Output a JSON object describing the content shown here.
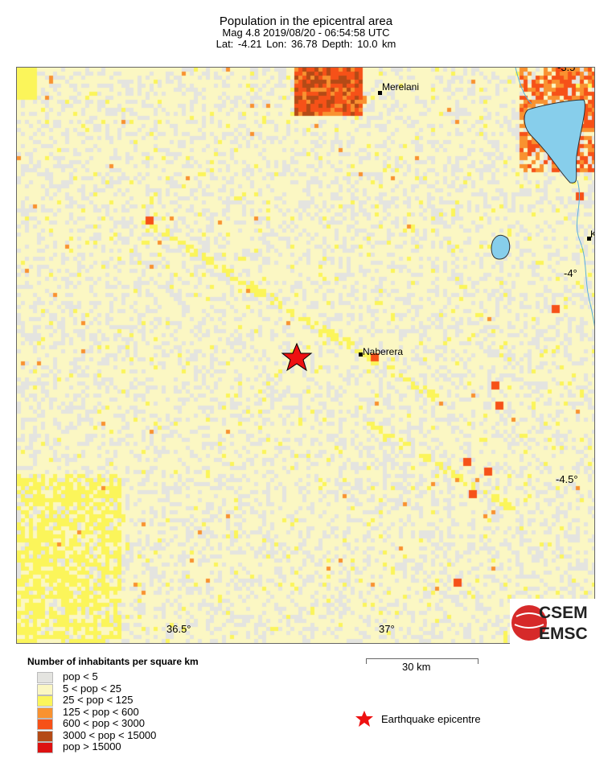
{
  "title": {
    "line1": "Population in the epicentral area",
    "line2": "Mag 4.8  2019/08/20 - 06:54:58 UTC",
    "line3": "Lat: -4.21    Lon:  36.78    Depth:  10.0 km"
  },
  "map": {
    "lat_labels": [
      "-3.5",
      "-4°",
      "-4.5°"
    ],
    "lon_labels": [
      "36.5°",
      "37°"
    ],
    "places": [
      "Merelani",
      "Naberera",
      "K"
    ],
    "epicentre": {
      "lat": -4.21,
      "lon": 36.78
    },
    "water_color": "#87ceeb",
    "scale_label": "30 km"
  },
  "legend": {
    "title": "Number of inhabitants per square km",
    "classes": [
      {
        "label": "pop < 5",
        "color": "#e4e4e0"
      },
      {
        "label": "5 < pop < 25",
        "color": "#fbf7c3"
      },
      {
        "label": "25 < pop < 125",
        "color": "#fbf55a"
      },
      {
        "label": "125 < pop < 600",
        "color": "#f99230"
      },
      {
        "label": "600 < pop < 3000",
        "color": "#f65118"
      },
      {
        "label": "3000 < pop < 15000",
        "color": "#b44a16"
      },
      {
        "label": "pop > 15000",
        "color": "#dd1111"
      }
    ],
    "epicentre_label": "Earthquake epicentre"
  },
  "logo": {
    "line1": "CSEM",
    "line2": "EMSC"
  }
}
